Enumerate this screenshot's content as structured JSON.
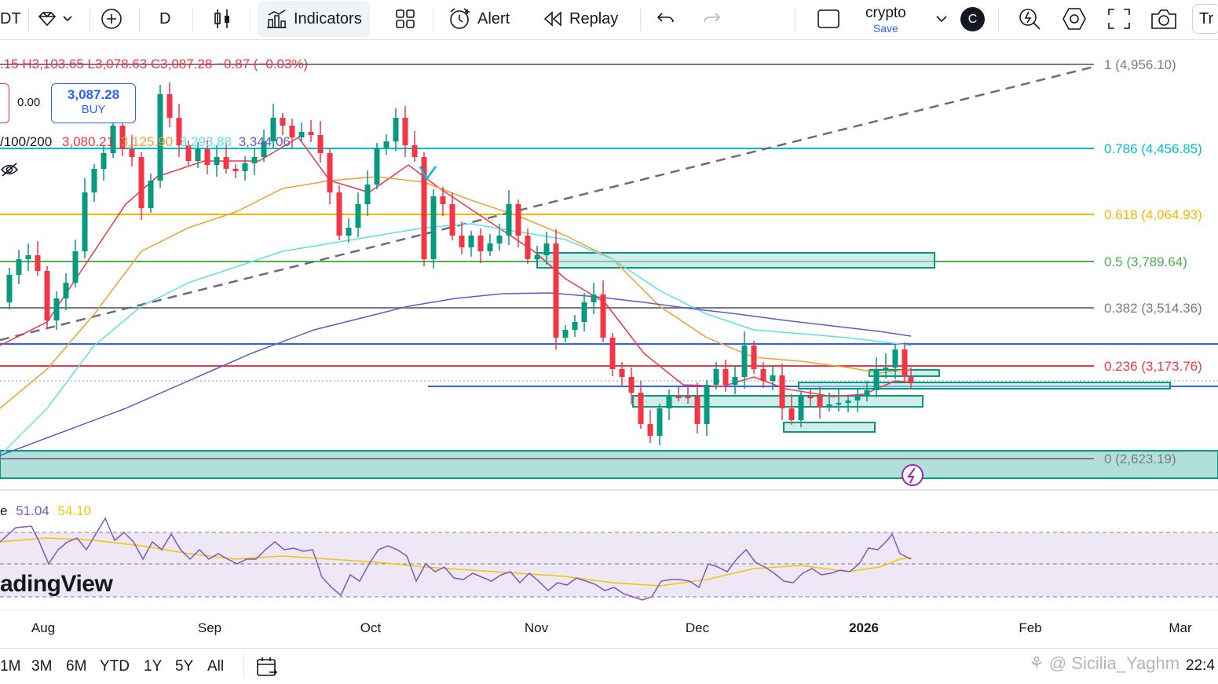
{
  "toolbar": {
    "symbol_tail": "DT",
    "interval": "D",
    "indicators_label": "Indicators",
    "alert_label": "Alert",
    "replay_label": "Replay",
    "layout_name": "crypto",
    "layout_save": "Save",
    "avatar_letter": "C",
    "trade_tail": "Tr"
  },
  "legend": {
    "ohlc": ".15 H3,103.65 L3,078.63 C3,087.28 −0.87 (−0.03%)",
    "spread": "0.00",
    "buy_price": "3,087.28",
    "buy_label": "BUY",
    "ma_label": "/100/200",
    "ma20": "3,080.21",
    "ma50": "3,125.90",
    "ma100": "3,293.88",
    "ma200": "3,344.06"
  },
  "fib_labels": [
    "1 (4,956.10)",
    "0.786 (4,456.85)",
    "0.618 (4,064.93)",
    "0.5 (3,789.64)",
    "0.382 (3,514.36)",
    "0.236 (3,173.76)",
    "0 (2,623.19)"
  ],
  "rsi": {
    "label_tail": "e",
    "value": "51.04",
    "ma": "54.10"
  },
  "watermark": "adingView",
  "time_axis": [
    "Aug",
    "Sep",
    "Oct",
    "Nov",
    "Dec",
    "2026",
    "Feb",
    "Mar"
  ],
  "ranges": [
    "1M",
    "3M",
    "6M",
    "YTD",
    "1Y",
    "5Y",
    "All"
  ],
  "credit": "@ Sicilia_Yaghm",
  "clock": "22:4",
  "colors": {
    "up": "#089981",
    "down": "#f23645",
    "zone": "#b2dfdb",
    "zone_border": "#089981",
    "fib1": "#787b86",
    "fib786": "#00bcd4",
    "fib618": "#f7b500",
    "fib5": "#4caf50",
    "fib382": "#787b86",
    "fib236": "#f23645",
    "fib0": "#787b86",
    "ma20": "#f23645",
    "ma50": "#f0a030",
    "ma100": "#5fe0e6",
    "ma200": "#5c5cc8",
    "rsi": "#7e57c2",
    "rsi_ma": "#f0c800",
    "rsi_band": "#ede7f6"
  }
}
